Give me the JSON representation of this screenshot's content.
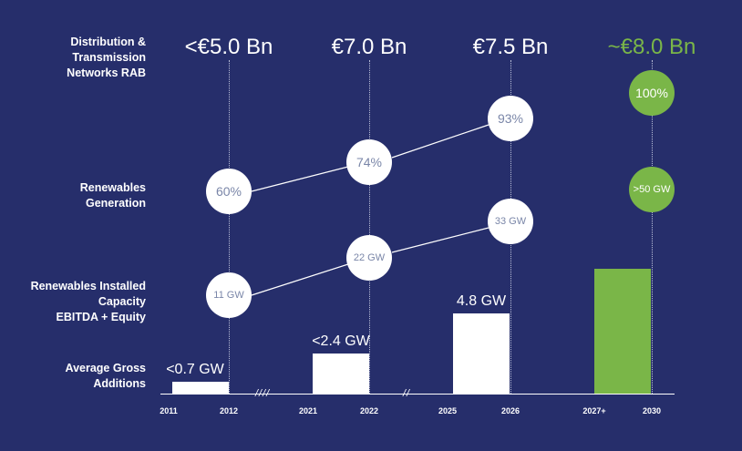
{
  "row_labels": {
    "rab": "Distribution & Transmission Networks RAB",
    "renewables_generation": "Renewables Generation",
    "renewables_capacity": "Renewables Installed Capacity EBITDA + Equity",
    "gross_additions": "Average Gross Additions"
  },
  "chart_data": {
    "type": "bar",
    "periods": [
      "2011-2012",
      "2021-2022",
      "2025-2026",
      "2027+-2030"
    ],
    "x_ticks": [
      "2011",
      "2012",
      "2021",
      "2022",
      "2025",
      "2026",
      "2027+",
      "2030"
    ],
    "rab": [
      "<€5.0 Bn",
      "€7.0 Bn",
      "€7.5 Bn",
      "~€8.0 Bn"
    ],
    "renewables_generation": [
      "60%",
      "74%",
      "93%",
      "100%"
    ],
    "renewables_capacity": [
      "11 GW",
      "22 GW",
      "33 GW",
      ">50 GW"
    ],
    "gross_additions": {
      "labels": [
        "<0.7 GW",
        "<2.4 GW",
        "4.8 GW",
        ""
      ],
      "values": [
        0.7,
        2.4,
        4.8,
        7.5
      ]
    },
    "axis_breaks": [
      "////",
      "//"
    ],
    "colors": {
      "background": "#262e6b",
      "highlight": "#7ab648",
      "base": "#ffffff",
      "circle_text": "#7a86a8"
    }
  }
}
